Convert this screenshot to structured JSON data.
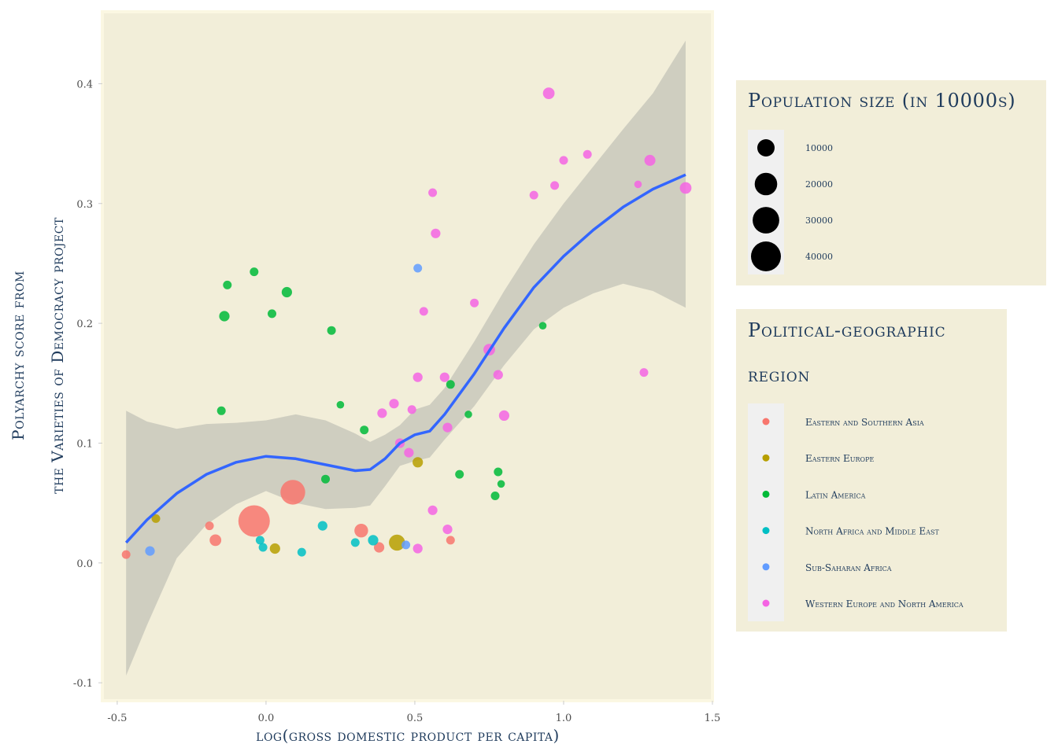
{
  "chart_data": {
    "type": "scatter",
    "xlabel": "log(gross domestic product per capita)",
    "ylabel": [
      "Polyarchy score from",
      "the Varieties of Democracy project"
    ],
    "xlim": [
      -0.55,
      1.5
    ],
    "ylim": [
      -0.115,
      0.46
    ],
    "x_ticks": [
      -0.5,
      0.0,
      0.5,
      1.0,
      1.5
    ],
    "x_tick_labels": [
      "-0.5",
      "0.0",
      "0.5",
      "1.0",
      "1.5"
    ],
    "y_ticks": [
      -0.1,
      0.0,
      0.1,
      0.2,
      0.3,
      0.4
    ],
    "y_tick_labels": [
      "-0.1",
      "0.0",
      "0.1",
      "0.2",
      "0.3",
      "0.4"
    ],
    "grid": false,
    "panel_background": "#f2eed9",
    "smooth": {
      "color": "#3366ff",
      "ribbon_color": "#cccbbf",
      "x": [
        -0.47,
        -0.4,
        -0.3,
        -0.2,
        -0.1,
        0.0,
        0.1,
        0.2,
        0.3,
        0.35,
        0.4,
        0.45,
        0.5,
        0.55,
        0.6,
        0.7,
        0.8,
        0.9,
        1.0,
        1.1,
        1.2,
        1.3,
        1.41
      ],
      "y": [
        0.017,
        0.036,
        0.058,
        0.074,
        0.084,
        0.089,
        0.087,
        0.082,
        0.077,
        0.078,
        0.087,
        0.1,
        0.107,
        0.11,
        0.124,
        0.158,
        0.196,
        0.23,
        0.256,
        0.278,
        0.297,
        0.312,
        0.324
      ],
      "upper": [
        0.127,
        0.118,
        0.112,
        0.116,
        0.117,
        0.119,
        0.124,
        0.119,
        0.108,
        0.101,
        0.107,
        0.115,
        0.128,
        0.132,
        0.146,
        0.185,
        0.227,
        0.266,
        0.3,
        0.331,
        0.362,
        0.392,
        0.436
      ],
      "lower": [
        -0.094,
        -0.052,
        0.004,
        0.032,
        0.049,
        0.06,
        0.05,
        0.045,
        0.046,
        0.048,
        0.064,
        0.081,
        0.085,
        0.088,
        0.103,
        0.131,
        0.165,
        0.195,
        0.213,
        0.225,
        0.233,
        0.227,
        0.213
      ]
    },
    "series": [
      {
        "name": "Eastern and Southern Asia",
        "color": "#f8766d",
        "points": [
          {
            "x": -0.47,
            "y": 0.007,
            "size": 1000
          },
          {
            "x": -0.19,
            "y": 0.031,
            "size": 1000
          },
          {
            "x": -0.17,
            "y": 0.019,
            "size": 3000
          },
          {
            "x": -0.04,
            "y": 0.035,
            "size": 45000
          },
          {
            "x": 0.09,
            "y": 0.059,
            "size": 25000
          },
          {
            "x": 0.32,
            "y": 0.027,
            "size": 5000
          },
          {
            "x": 0.38,
            "y": 0.013,
            "size": 2000
          },
          {
            "x": 0.62,
            "y": 0.019,
            "size": 1000
          }
        ]
      },
      {
        "name": "Eastern Europe",
        "color": "#b79f00",
        "points": [
          {
            "x": -0.37,
            "y": 0.037,
            "size": 1000
          },
          {
            "x": 0.03,
            "y": 0.012,
            "size": 2000
          },
          {
            "x": 0.44,
            "y": 0.017,
            "size": 8000
          },
          {
            "x": 0.51,
            "y": 0.084,
            "size": 2000
          }
        ]
      },
      {
        "name": "Latin America",
        "color": "#00ba38",
        "points": [
          {
            "x": -0.15,
            "y": 0.127,
            "size": 1000
          },
          {
            "x": -0.14,
            "y": 0.206,
            "size": 2000
          },
          {
            "x": -0.13,
            "y": 0.232,
            "size": 1000
          },
          {
            "x": -0.04,
            "y": 0.243,
            "size": 1000
          },
          {
            "x": 0.02,
            "y": 0.208,
            "size": 1000
          },
          {
            "x": 0.07,
            "y": 0.226,
            "size": 2000
          },
          {
            "x": 0.2,
            "y": 0.07,
            "size": 1000
          },
          {
            "x": 0.22,
            "y": 0.194,
            "size": 1000
          },
          {
            "x": 0.25,
            "y": 0.132,
            "size": 500
          },
          {
            "x": 0.33,
            "y": 0.111,
            "size": 1000
          },
          {
            "x": 0.62,
            "y": 0.149,
            "size": 1000
          },
          {
            "x": 0.65,
            "y": 0.074,
            "size": 1000
          },
          {
            "x": 0.68,
            "y": 0.124,
            "size": 500
          },
          {
            "x": 0.77,
            "y": 0.056,
            "size": 1000
          },
          {
            "x": 0.78,
            "y": 0.076,
            "size": 1000
          },
          {
            "x": 0.79,
            "y": 0.066,
            "size": 500
          },
          {
            "x": 0.93,
            "y": 0.198,
            "size": 500
          }
        ]
      },
      {
        "name": "North Africa and Middle East",
        "color": "#00bfc4",
        "points": [
          {
            "x": -0.02,
            "y": 0.019,
            "size": 1000
          },
          {
            "x": -0.01,
            "y": 0.013,
            "size": 1000
          },
          {
            "x": 0.12,
            "y": 0.009,
            "size": 1000
          },
          {
            "x": 0.19,
            "y": 0.031,
            "size": 1500
          },
          {
            "x": 0.3,
            "y": 0.017,
            "size": 1000
          },
          {
            "x": 0.36,
            "y": 0.019,
            "size": 2000
          }
        ]
      },
      {
        "name": "Sub-Saharan Africa",
        "color": "#619cff",
        "points": [
          {
            "x": -0.39,
            "y": 0.01,
            "size": 1500
          },
          {
            "x": 0.47,
            "y": 0.015,
            "size": 1000
          },
          {
            "x": 0.51,
            "y": 0.246,
            "size": 1000
          }
        ]
      },
      {
        "name": "Western Europe and North America",
        "color": "#f564e3",
        "points": [
          {
            "x": 0.39,
            "y": 0.125,
            "size": 1500
          },
          {
            "x": 0.43,
            "y": 0.133,
            "size": 1500
          },
          {
            "x": 0.45,
            "y": 0.1,
            "size": 1500
          },
          {
            "x": 0.48,
            "y": 0.092,
            "size": 1500
          },
          {
            "x": 0.49,
            "y": 0.128,
            "size": 1000
          },
          {
            "x": 0.51,
            "y": 0.155,
            "size": 1500
          },
          {
            "x": 0.51,
            "y": 0.012,
            "size": 1500
          },
          {
            "x": 0.53,
            "y": 0.21,
            "size": 1000
          },
          {
            "x": 0.56,
            "y": 0.044,
            "size": 1500
          },
          {
            "x": 0.56,
            "y": 0.309,
            "size": 1000
          },
          {
            "x": 0.57,
            "y": 0.275,
            "size": 1500
          },
          {
            "x": 0.6,
            "y": 0.155,
            "size": 1500
          },
          {
            "x": 0.61,
            "y": 0.113,
            "size": 1500
          },
          {
            "x": 0.61,
            "y": 0.028,
            "size": 1500
          },
          {
            "x": 0.7,
            "y": 0.217,
            "size": 1000
          },
          {
            "x": 0.75,
            "y": 0.178,
            "size": 3000
          },
          {
            "x": 0.78,
            "y": 0.157,
            "size": 1500
          },
          {
            "x": 0.8,
            "y": 0.123,
            "size": 2000
          },
          {
            "x": 0.9,
            "y": 0.307,
            "size": 1000
          },
          {
            "x": 0.95,
            "y": 0.392,
            "size": 3000
          },
          {
            "x": 0.97,
            "y": 0.315,
            "size": 1000
          },
          {
            "x": 1.0,
            "y": 0.336,
            "size": 1000
          },
          {
            "x": 1.08,
            "y": 0.341,
            "size": 1000
          },
          {
            "x": 1.25,
            "y": 0.316,
            "size": 500
          },
          {
            "x": 1.27,
            "y": 0.159,
            "size": 1000
          },
          {
            "x": 1.29,
            "y": 0.336,
            "size": 2500
          },
          {
            "x": 1.41,
            "y": 0.313,
            "size": 3000
          }
        ]
      }
    ],
    "size_legend": {
      "title": "Population size (in 10000s)",
      "values": [
        10000,
        20000,
        30000,
        40000
      ],
      "labels": [
        "10000",
        "20000",
        "30000",
        "40000"
      ]
    },
    "color_legend": {
      "title_lines": [
        "Political-geographic",
        "region"
      ],
      "items": [
        {
          "label": "Eastern and Southern Asia",
          "color": "#f8766d"
        },
        {
          "label": "Eastern Europe",
          "color": "#b79f00"
        },
        {
          "label": "Latin America",
          "color": "#00ba38"
        },
        {
          "label": "North Africa and Middle East",
          "color": "#00bfc4"
        },
        {
          "label": "Sub-Saharan Africa",
          "color": "#619cff"
        },
        {
          "label": "Western Europe and North America",
          "color": "#f564e3"
        }
      ]
    }
  }
}
